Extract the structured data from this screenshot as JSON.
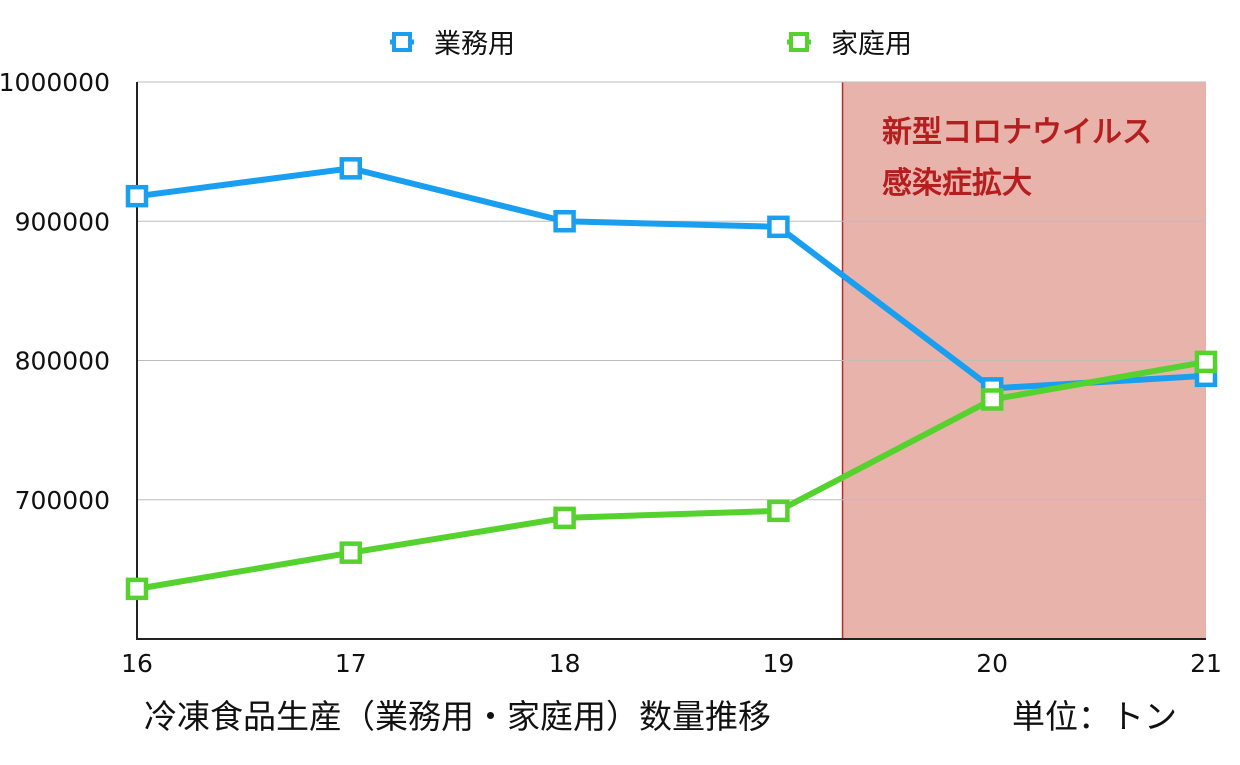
{
  "chart_data": {
    "type": "line",
    "categories": [
      "16",
      "17",
      "18",
      "19",
      "20",
      "21"
    ],
    "series": [
      {
        "name": "業務用",
        "color": "#1a9ff0",
        "values": [
          918000,
          938000,
          900000,
          896000,
          780000,
          789000
        ]
      },
      {
        "name": "家庭用",
        "color": "#55d22e",
        "values": [
          636000,
          662000,
          687000,
          692000,
          772000,
          799000
        ]
      }
    ],
    "ylim": [
      600000,
      1000000
    ],
    "yticks": [
      "1000000",
      "900000",
      "800000",
      "700000"
    ],
    "ytick_values": [
      1000000,
      900000,
      800000,
      700000
    ],
    "grid": true,
    "legend": "top",
    "title": "冷凍食品生産（業務用・家庭用）数量推移",
    "unit": "単位：トン",
    "highlight": {
      "from": 19.3,
      "to": 21,
      "color": "#e8b3aa",
      "border_color": "#b52a2a",
      "label_lines": [
        "新型コロナウイルス",
        "感染症拡大"
      ],
      "label_color": "#b41e1e"
    }
  }
}
